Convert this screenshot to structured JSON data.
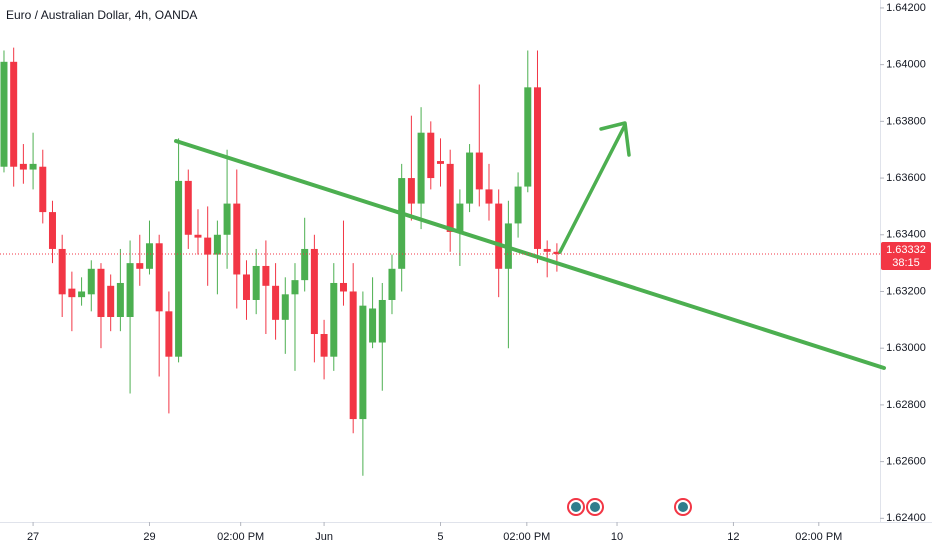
{
  "chart_data": {
    "type": "candlestick",
    "title": "Euro / Australian Dollar, 4h, OANDA",
    "up_color": "#4caf50",
    "down_color": "#f23645",
    "open": [
      1.6364,
      1.6401,
      1.6365,
      1.6363,
      1.6364,
      1.6348,
      1.6335,
      1.6321,
      1.6318,
      1.6319,
      1.6328,
      1.6322,
      1.6311,
      1.6311,
      1.633,
      1.6328,
      1.6337,
      1.6313,
      1.6297,
      1.6359,
      1.634,
      1.6339,
      1.6333,
      1.634,
      1.6351,
      1.6326,
      1.6317,
      1.6329,
      1.6322,
      1.631,
      1.6319,
      1.6324,
      1.6335,
      1.6305,
      1.6297,
      1.6323,
      1.632,
      1.6275,
      1.6302,
      1.6302,
      1.6317,
      1.6328,
      1.636,
      1.6351,
      1.6376,
      1.6366,
      1.6365,
      1.6341,
      1.6351,
      1.6369,
      1.6356,
      1.6351,
      1.6328,
      1.6344,
      1.6357,
      1.6392,
      1.6335,
      1.6334
    ],
    "high": [
      1.6405,
      1.6406,
      1.6372,
      1.6376,
      1.637,
      1.6352,
      1.634,
      1.6327,
      1.6325,
      1.6331,
      1.633,
      1.6326,
      1.6335,
      1.6338,
      1.634,
      1.6345,
      1.634,
      1.632,
      1.6374,
      1.6363,
      1.6349,
      1.635,
      1.6345,
      1.637,
      1.6363,
      1.6331,
      1.6335,
      1.6338,
      1.633,
      1.6325,
      1.633,
      1.6346,
      1.634,
      1.631,
      1.633,
      1.6345,
      1.633,
      1.632,
      1.6325,
      1.6323,
      1.6333,
      1.6365,
      1.6382,
      1.6385,
      1.638,
      1.6374,
      1.637,
      1.6356,
      1.6372,
      1.6393,
      1.6365,
      1.6356,
      1.6352,
      1.6362,
      1.6405,
      1.6405,
      1.6338,
      1.6337
    ],
    "low": [
      1.6362,
      1.6357,
      1.6358,
      1.6356,
      1.6344,
      1.633,
      1.6311,
      1.6306,
      1.6315,
      1.6313,
      1.63,
      1.6306,
      1.6306,
      1.6284,
      1.6322,
      1.6326,
      1.629,
      1.6277,
      1.6295,
      1.6335,
      1.6333,
      1.6322,
      1.6319,
      1.6328,
      1.6314,
      1.631,
      1.6312,
      1.6305,
      1.6303,
      1.6298,
      1.6292,
      1.632,
      1.6295,
      1.6289,
      1.6292,
      1.6315,
      1.627,
      1.6255,
      1.63,
      1.6285,
      1.6312,
      1.632,
      1.6345,
      1.6342,
      1.6356,
      1.6357,
      1.6334,
      1.6329,
      1.6348,
      1.635,
      1.6345,
      1.6318,
      1.63,
      1.6339,
      1.6355,
      1.633,
      1.6325,
      1.6327
    ],
    "close": [
      1.6401,
      1.6364,
      1.6363,
      1.6365,
      1.6348,
      1.6335,
      1.6319,
      1.6318,
      1.632,
      1.6328,
      1.6311,
      1.6311,
      1.6323,
      1.633,
      1.6328,
      1.6337,
      1.6313,
      1.6297,
      1.6359,
      1.634,
      1.6339,
      1.6333,
      1.634,
      1.6351,
      1.6326,
      1.6317,
      1.6329,
      1.6322,
      1.631,
      1.6319,
      1.6324,
      1.6335,
      1.6305,
      1.6297,
      1.6323,
      1.632,
      1.6275,
      1.6315,
      1.6314,
      1.6317,
      1.6328,
      1.636,
      1.6351,
      1.6376,
      1.636,
      1.6365,
      1.6341,
      1.6351,
      1.6369,
      1.6356,
      1.6351,
      1.6328,
      1.6344,
      1.6357,
      1.6392,
      1.6335,
      1.6334,
      1.63332
    ],
    "xlim": [
      -0.41,
      90.31
    ],
    "xticks": [
      {
        "value": 3,
        "label": "27"
      },
      {
        "value": 15,
        "label": "29"
      },
      {
        "value": 24.4,
        "label": "02:00 PM"
      },
      {
        "value": 33,
        "label": "Jun"
      },
      {
        "value": 45,
        "label": "5"
      },
      {
        "value": 53.9,
        "label": "02:00 PM"
      },
      {
        "value": 63.2,
        "label": "10"
      },
      {
        "value": 75.2,
        "label": "12"
      },
      {
        "value": 84,
        "label": "02:00 PM"
      }
    ],
    "ylim": [
      1.62387,
      1.64228
    ],
    "yticks": [
      {
        "value": 1.642,
        "label": "1.64200"
      },
      {
        "value": 1.64,
        "label": "1.64000"
      },
      {
        "value": 1.638,
        "label": "1.63800"
      },
      {
        "value": 1.636,
        "label": "1.63600"
      },
      {
        "value": 1.634,
        "label": "1.63400"
      },
      {
        "value": 1.632,
        "label": "1.63200"
      },
      {
        "value": 1.63,
        "label": "1.63000"
      },
      {
        "value": 1.628,
        "label": "1.62800"
      },
      {
        "value": 1.626,
        "label": "1.62600"
      },
      {
        "value": 1.624,
        "label": "1.62400"
      }
    ],
    "last_price": {
      "value": 1.63332,
      "label": "1.63332"
    },
    "countdown": "38:15"
  }
}
